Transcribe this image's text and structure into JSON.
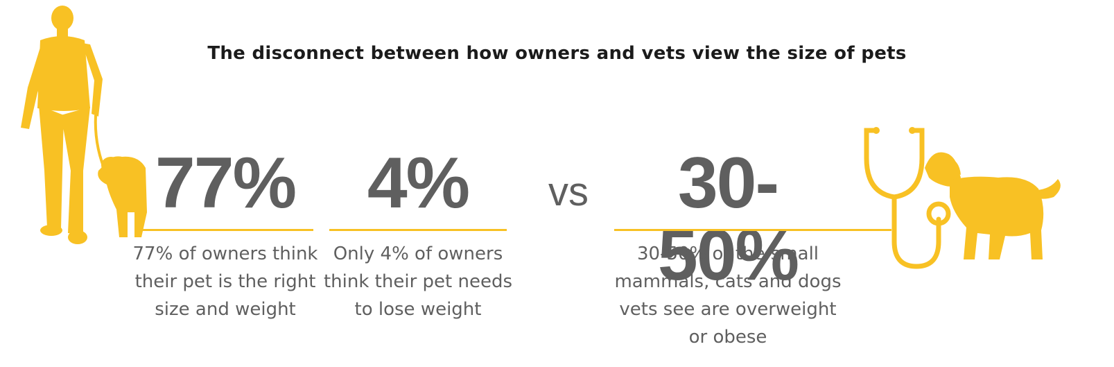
{
  "title": "The disconnect between how owners and vets view the size of pets",
  "stats": [
    {
      "value": "77%",
      "description_lines": [
        "77% of owners think",
        "their pet is the right",
        "size and weight"
      ]
    },
    {
      "value": "4%",
      "description_lines": [
        "Only 4% of owners",
        "think their pet needs",
        "to lose weight"
      ]
    },
    {
      "value": "30-50%",
      "description_lines": [
        "30-50% of the small",
        "mammals, cats and dogs",
        "vets see are overweight",
        "or obese"
      ]
    }
  ],
  "vs_label": "vs",
  "colors": {
    "accent": "#f8c124",
    "number_gray": "#5f5f5f",
    "title_dark": "#1b1b1b"
  },
  "icons": [
    "person-walking-dog-icon",
    "stethoscope-icon",
    "dog-icon"
  ]
}
